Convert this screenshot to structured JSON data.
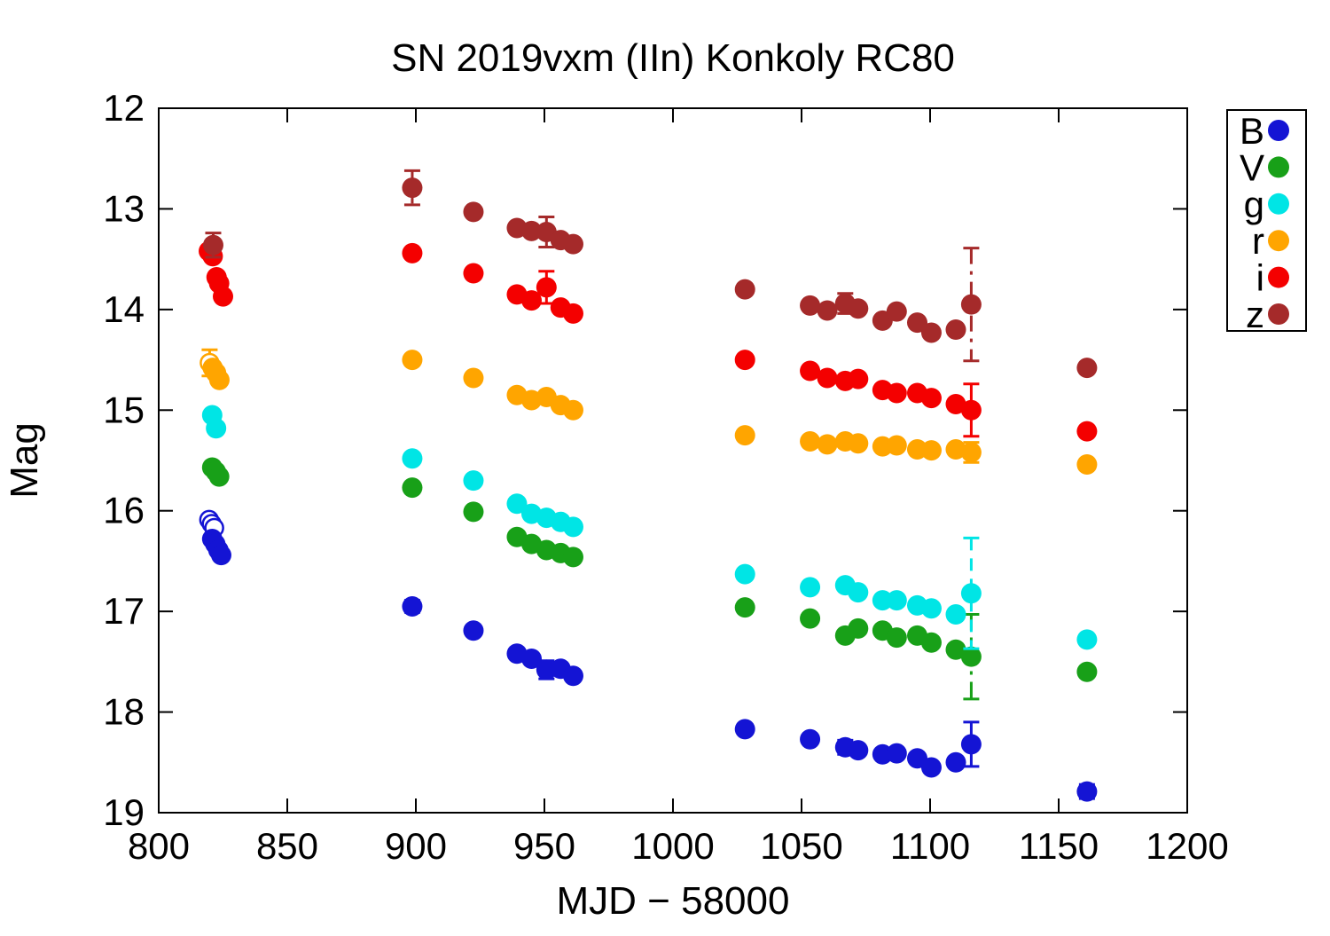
{
  "title": "SN 2019vxm (IIn) Konkoly RC80",
  "chart_data": {
    "type": "scatter",
    "title": "SN 2019vxm (IIn) Konkoly RC80",
    "xlabel": "MJD − 58000",
    "ylabel": "Mag",
    "xlim": [
      800,
      1200
    ],
    "ylim": [
      12,
      19
    ],
    "y_inverted": true,
    "xticks": [
      800,
      850,
      900,
      950,
      1000,
      1050,
      1100,
      1150,
      1200
    ],
    "yticks": [
      12,
      13,
      14,
      15,
      16,
      17,
      18,
      19
    ],
    "grid": false,
    "legend_position": "outside-top-right",
    "series": [
      {
        "name": "B",
        "color": "#1414d4",
        "open_points": [
          [
            819.6,
            16.09
          ],
          [
            820.6,
            16.13
          ],
          [
            821.6,
            16.17
          ]
        ],
        "points": [
          [
            820.8,
            16.28
          ],
          [
            822.0,
            16.33
          ],
          [
            823.2,
            16.39
          ],
          [
            824.3,
            16.44
          ],
          [
            898.6,
            16.95,
            0.06
          ],
          [
            922.4,
            17.19,
            0.05
          ],
          [
            939.3,
            17.42
          ],
          [
            945.0,
            17.47
          ],
          [
            950.8,
            17.58,
            0.09
          ],
          [
            956.3,
            17.57
          ],
          [
            961.2,
            17.64
          ],
          [
            1028,
            18.17,
            0.05
          ],
          [
            1053.3,
            18.27
          ],
          [
            1067,
            18.35,
            0.07
          ],
          [
            1072,
            18.38
          ],
          [
            1081.5,
            18.42
          ],
          [
            1087,
            18.41
          ],
          [
            1095,
            18.46
          ],
          [
            1100.5,
            18.55,
            0.05
          ],
          [
            1110,
            18.5
          ],
          [
            1116,
            18.32,
            0.22
          ],
          [
            1161,
            18.79,
            0.07
          ]
        ]
      },
      {
        "name": "V",
        "color": "#18a018",
        "open_points": [],
        "points": [
          [
            820.8,
            15.57
          ],
          [
            822.2,
            15.61
          ],
          [
            823.5,
            15.66
          ],
          [
            898.6,
            15.77
          ],
          [
            922.4,
            16.01
          ],
          [
            939.3,
            16.26
          ],
          [
            945.0,
            16.33
          ],
          [
            950.8,
            16.39
          ],
          [
            956.3,
            16.42
          ],
          [
            961.2,
            16.46
          ],
          [
            1028,
            16.96
          ],
          [
            1053.3,
            17.07
          ],
          [
            1067,
            17.24
          ],
          [
            1072,
            17.17
          ],
          [
            1081.5,
            17.19
          ],
          [
            1087,
            17.26
          ],
          [
            1095,
            17.24
          ],
          [
            1100.5,
            17.31
          ],
          [
            1110,
            17.38
          ],
          [
            1116,
            17.45,
            0.42,
            "dashdot"
          ],
          [
            1161,
            17.6
          ]
        ]
      },
      {
        "name": "g",
        "color": "#00e5e5",
        "open_points": [],
        "points": [
          [
            820.8,
            15.05
          ],
          [
            822.3,
            15.18
          ],
          [
            898.6,
            15.48
          ],
          [
            922.4,
            15.7
          ],
          [
            939.3,
            15.93
          ],
          [
            945.0,
            16.03
          ],
          [
            950.8,
            16.07
          ],
          [
            956.3,
            16.11
          ],
          [
            961.2,
            16.16
          ],
          [
            1028,
            16.63
          ],
          [
            1053.3,
            16.76
          ],
          [
            1067,
            16.74
          ],
          [
            1072,
            16.81
          ],
          [
            1081.5,
            16.89
          ],
          [
            1087,
            16.89
          ],
          [
            1095,
            16.94
          ],
          [
            1100.5,
            16.97
          ],
          [
            1110,
            17.03
          ],
          [
            1116,
            16.82,
            0.55,
            "dashed"
          ],
          [
            1161,
            17.28
          ]
        ]
      },
      {
        "name": "r",
        "color": "#ffa500",
        "open_points": [
          [
            819.8,
            14.53,
            0.13,
            "dashed"
          ]
        ],
        "points": [
          [
            821.0,
            14.58
          ],
          [
            822.3,
            14.63
          ],
          [
            823.6,
            14.7
          ],
          [
            898.6,
            14.5
          ],
          [
            922.4,
            14.68
          ],
          [
            939.3,
            14.85
          ],
          [
            945.0,
            14.9
          ],
          [
            950.8,
            14.87
          ],
          [
            956.3,
            14.95
          ],
          [
            961.2,
            15.0
          ],
          [
            1028,
            15.25
          ],
          [
            1053.3,
            15.31
          ],
          [
            1060,
            15.34
          ],
          [
            1067,
            15.31
          ],
          [
            1072,
            15.33
          ],
          [
            1081.5,
            15.36
          ],
          [
            1087,
            15.35
          ],
          [
            1095,
            15.39
          ],
          [
            1100.5,
            15.4
          ],
          [
            1110,
            15.39
          ],
          [
            1116,
            15.42,
            0.1,
            "dotted"
          ],
          [
            1161,
            15.54
          ]
        ]
      },
      {
        "name": "i",
        "color": "#f40000",
        "open_points": [],
        "points": [
          [
            819.5,
            13.42
          ],
          [
            821.0,
            13.47
          ],
          [
            822.5,
            13.68
          ],
          [
            823.5,
            13.74
          ],
          [
            825.0,
            13.87
          ],
          [
            898.6,
            13.44
          ],
          [
            922.4,
            13.64
          ],
          [
            939.3,
            13.85
          ],
          [
            945.0,
            13.91
          ],
          [
            950.8,
            13.78,
            0.16
          ],
          [
            956.3,
            13.98
          ],
          [
            961.2,
            14.04
          ],
          [
            1028,
            14.5
          ],
          [
            1053.3,
            14.61
          ],
          [
            1060,
            14.68
          ],
          [
            1067,
            14.71
          ],
          [
            1072,
            14.69
          ],
          [
            1081.5,
            14.8
          ],
          [
            1087,
            14.83
          ],
          [
            1095,
            14.83
          ],
          [
            1100.5,
            14.88
          ],
          [
            1110,
            14.94
          ],
          [
            1116,
            15.0,
            0.26
          ],
          [
            1161,
            15.21
          ]
        ]
      },
      {
        "name": "z",
        "color": "#a52a2a",
        "open_points": [],
        "points": [
          [
            821.2,
            13.36,
            0.12,
            "dashed"
          ],
          [
            898.6,
            12.79,
            0.17,
            "dashed"
          ],
          [
            922.4,
            13.03
          ],
          [
            939.3,
            13.19
          ],
          [
            945.0,
            13.22
          ],
          [
            950.8,
            13.23,
            0.15,
            "dashed"
          ],
          [
            956.3,
            13.31
          ],
          [
            961.2,
            13.35
          ],
          [
            1028,
            13.8
          ],
          [
            1053.3,
            13.96
          ],
          [
            1060,
            14.01
          ],
          [
            1067,
            13.94,
            0.1,
            "dashed"
          ],
          [
            1072,
            13.99
          ],
          [
            1081.5,
            14.11
          ],
          [
            1087,
            14.02
          ],
          [
            1095,
            14.13
          ],
          [
            1100.5,
            14.23
          ],
          [
            1110,
            14.2
          ],
          [
            1116,
            13.95,
            0.56,
            "dashdot"
          ],
          [
            1161,
            14.58
          ]
        ]
      }
    ]
  }
}
